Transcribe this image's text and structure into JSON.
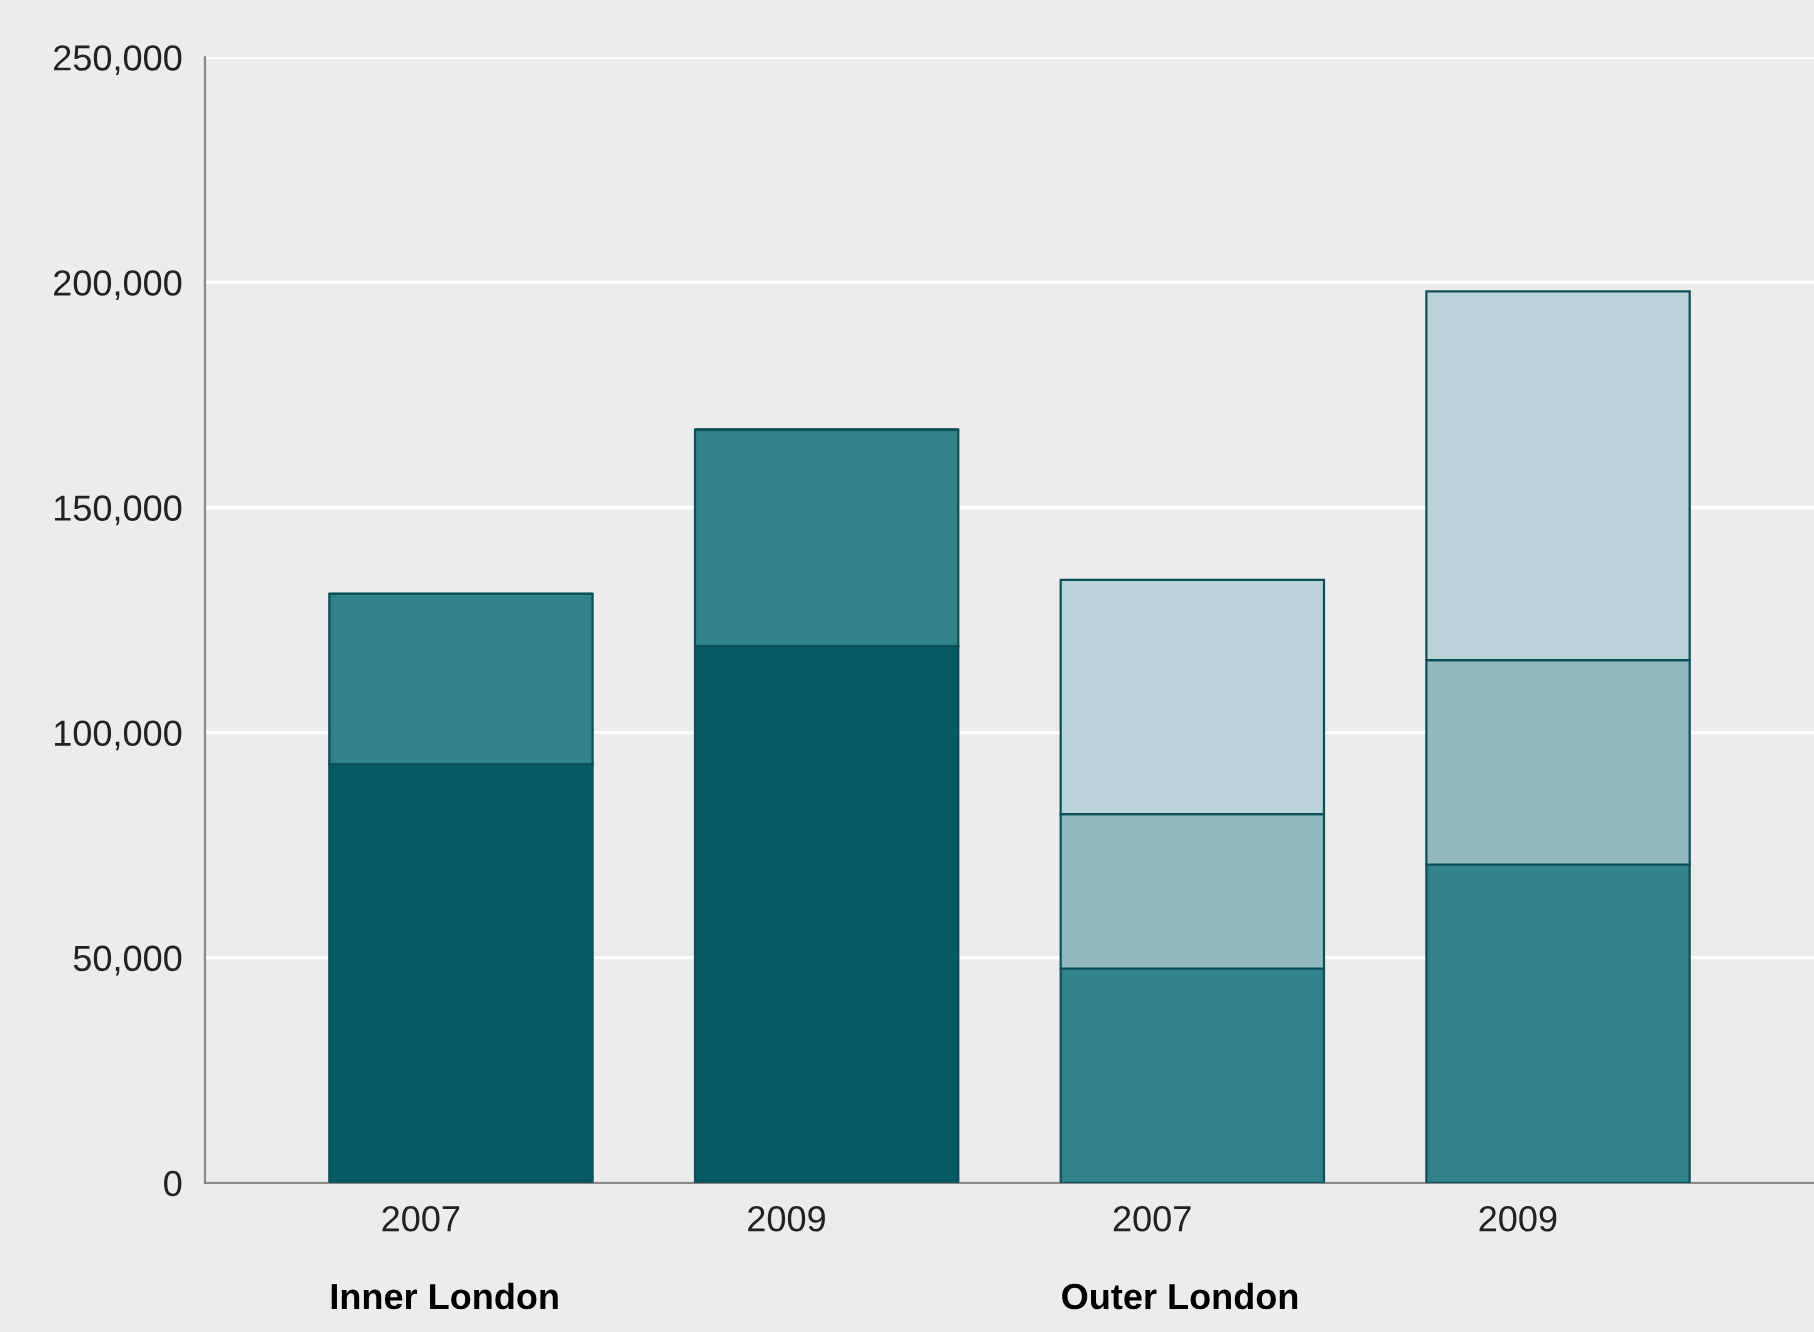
{
  "chart_data": {
    "type": "bar",
    "stacked": true,
    "categories": [
      "2007",
      "2009",
      "2007",
      "2009"
    ],
    "series": [
      {
        "color": "#055a63",
        "values": [
          93000,
          119200,
          null,
          null
        ]
      },
      {
        "color": "#31828a",
        "values": [
          37800,
          48100,
          47600,
          70700
        ]
      },
      {
        "color": "#93b8c0",
        "values": [
          null,
          null,
          34300,
          45400
        ]
      },
      {
        "color": "#b9d3d8",
        "values": [
          null,
          null,
          52000,
          81900
        ]
      }
    ],
    "ylim": [
      0,
      250000
    ],
    "yticks": [
      {
        "value": 0,
        "label": "0"
      },
      {
        "value": 50000,
        "label": "50,000"
      },
      {
        "value": 100000,
        "label": "100,000"
      },
      {
        "value": 150000,
        "label": "150,000"
      },
      {
        "value": 200000,
        "label": "200,000"
      },
      {
        "value": 250000,
        "label": "250,000"
      }
    ],
    "grid": "y",
    "annotations": [
      "Inner London",
      "Outer London"
    ]
  }
}
